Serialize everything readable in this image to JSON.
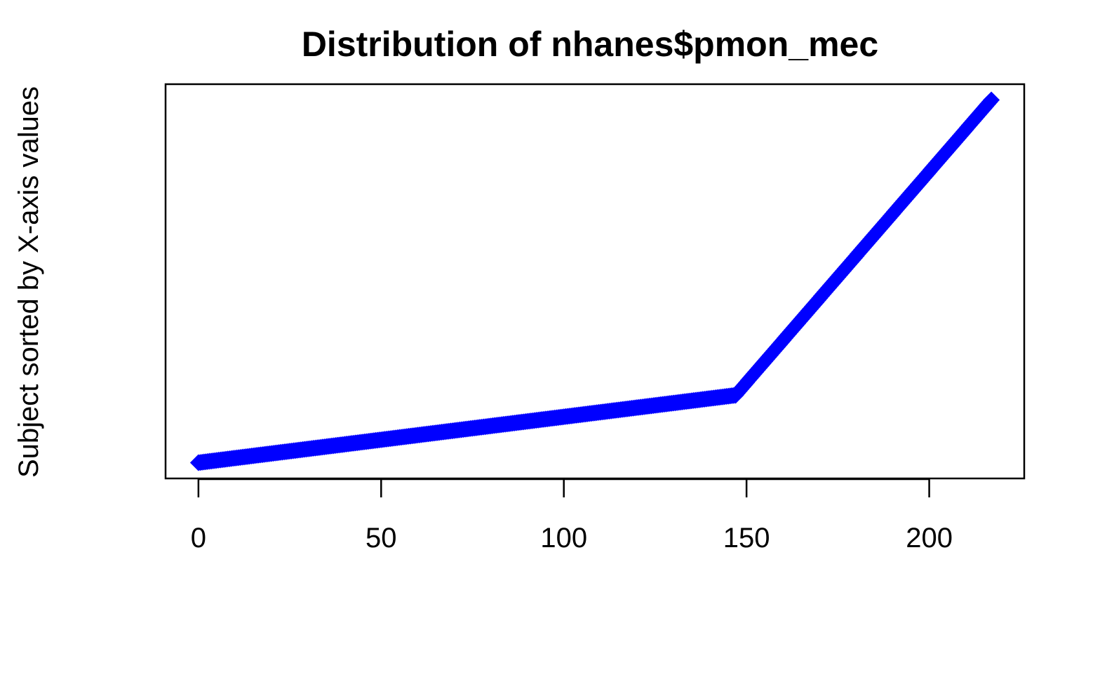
{
  "chart_data": {
    "type": "scatter",
    "title": "Distribution of nhanes$pmon_mec",
    "xlabel": "",
    "ylabel": "Subject sorted by X-axis values",
    "xlim": [
      -9,
      226
    ],
    "xticks": [
      "0",
      "50",
      "100",
      "150",
      "200"
    ],
    "xtick_values": [
      0,
      50,
      100,
      150,
      200
    ],
    "y_axis_ticks": false,
    "marker": "diamond",
    "color": "#0000ff",
    "segments": [
      {
        "x_start": 0,
        "x_end": 147,
        "rank_start": 1,
        "rank_end": 1825
      },
      {
        "x_start": 147,
        "x_end": 217,
        "rank_start": 1826,
        "rank_end": 9813
      }
    ],
    "n_points": 9813
  }
}
